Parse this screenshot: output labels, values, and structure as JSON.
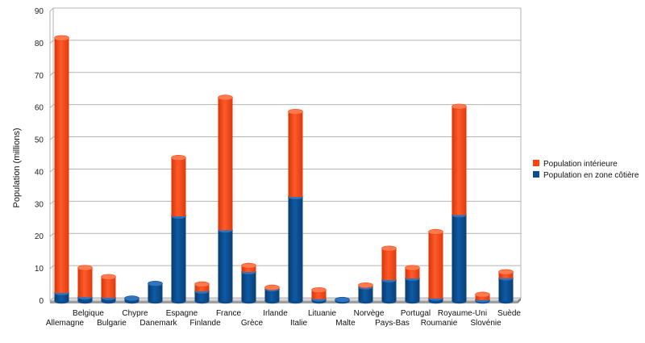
{
  "chart_data": {
    "type": "bar",
    "stacked": true,
    "title": "",
    "xlabel": "",
    "ylabel": "Population (millions)",
    "ylim": [
      0,
      90
    ],
    "yticks": [
      0,
      10,
      20,
      30,
      40,
      50,
      60,
      70,
      80,
      90
    ],
    "grid": true,
    "legend_position": "right",
    "categories": [
      "Allemagne",
      "Belgique",
      "Bulgarie",
      "Chypre",
      "Danemark",
      "Espagne",
      "Finlande",
      "France",
      "Grèce",
      "Irlande",
      "Italie",
      "Lituanie",
      "Malte",
      "Norvège",
      "Pays-Bas",
      "Portugal",
      "Roumanie",
      "Royaume-Uni",
      "Slovénie",
      "Suède"
    ],
    "series": [
      {
        "name": "Population en zone côtière",
        "color": "#0b4d8e",
        "values": [
          2.5,
          1.2,
          1.0,
          0.8,
          5.4,
          26.3,
          3.0,
          22.0,
          9.0,
          3.7,
          32.3,
          0.6,
          0.4,
          4.3,
          6.5,
          7.0,
          0.8,
          26.7,
          0.3,
          7.1
        ]
      },
      {
        "name": "Population intérieure",
        "color": "#ff420e",
        "values": [
          79.2,
          9.1,
          6.5,
          0.0,
          0.0,
          18.2,
          2.2,
          41.2,
          2.0,
          0.5,
          26.5,
          2.8,
          0.0,
          0.6,
          9.8,
          3.3,
          20.7,
          33.7,
          1.7,
          1.9
        ]
      }
    ],
    "legend": [
      "Population intérieure",
      "Population en zone côtière"
    ]
  }
}
